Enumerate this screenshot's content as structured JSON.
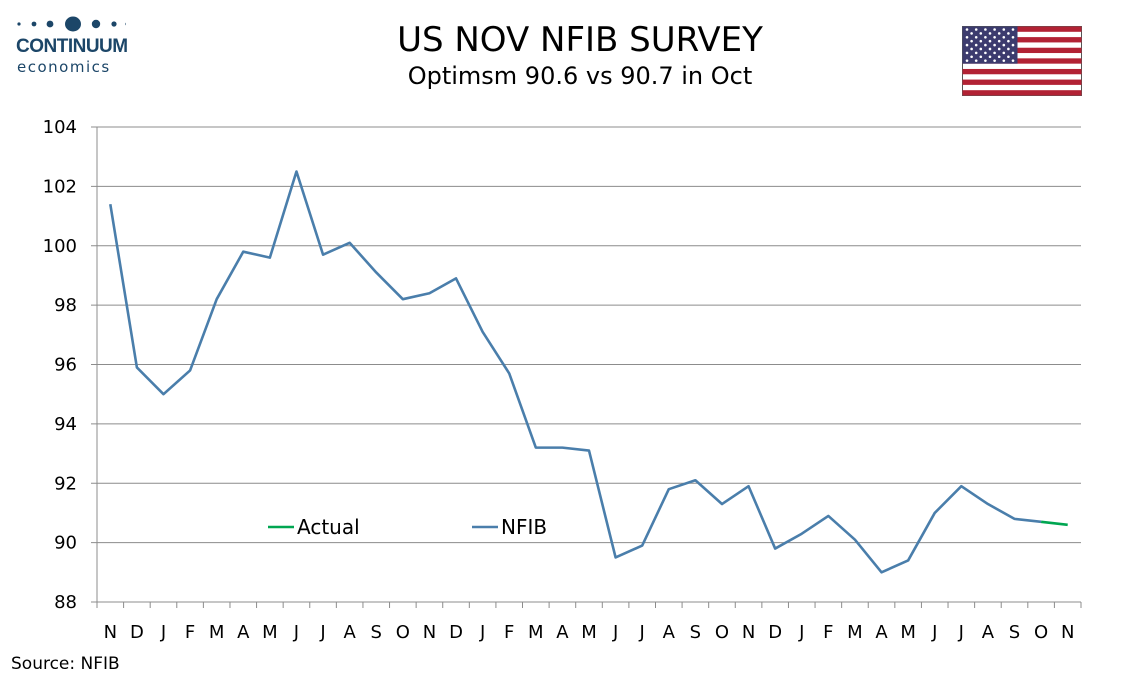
{
  "logo": {
    "name": "CONTINUUM",
    "sub": "economics",
    "color": "#1c4668"
  },
  "header": {
    "title": "US NOV NFIB SURVEY",
    "subtitle": "Optimsm 90.6 vs 90.7 in Oct"
  },
  "footer": {
    "source": "Source: NFIB"
  },
  "chart_data": {
    "type": "line",
    "title": "US NOV NFIB SURVEY",
    "subtitle": "Optimsm 90.6 vs 90.7 in Oct",
    "xlabel": "",
    "ylabel": "",
    "ylim": [
      88,
      104
    ],
    "yticks": [
      88,
      90,
      92,
      94,
      96,
      98,
      100,
      102,
      104
    ],
    "grid": "horizontal",
    "legend_position": "bottom-left inside plot",
    "x": [
      "N",
      "D",
      "J",
      "F",
      "M",
      "A",
      "M",
      "J",
      "J",
      "A",
      "S",
      "O",
      "N",
      "D",
      "J",
      "F",
      "M",
      "A",
      "M",
      "J",
      "J",
      "A",
      "S",
      "O",
      "N",
      "D",
      "J",
      "F",
      "M",
      "A",
      "M",
      "J",
      "J",
      "A",
      "S",
      "O",
      "N"
    ],
    "series": [
      {
        "name": "NFIB",
        "color": "#4a7eab",
        "values": [
          101.4,
          95.9,
          95.0,
          95.8,
          98.2,
          99.8,
          99.6,
          102.5,
          99.7,
          100.1,
          99.1,
          98.2,
          98.4,
          98.9,
          97.1,
          95.7,
          93.2,
          93.2,
          93.1,
          89.5,
          89.9,
          91.8,
          92.1,
          91.3,
          91.9,
          89.8,
          90.3,
          90.9,
          90.1,
          89.0,
          89.4,
          91.0,
          91.9,
          91.3,
          90.8,
          90.7,
          null
        ]
      },
      {
        "name": "Actual",
        "color": "#00a651",
        "values": [
          null,
          null,
          null,
          null,
          null,
          null,
          null,
          null,
          null,
          null,
          null,
          null,
          null,
          null,
          null,
          null,
          null,
          null,
          null,
          null,
          null,
          null,
          null,
          null,
          null,
          null,
          null,
          null,
          null,
          null,
          null,
          null,
          null,
          null,
          null,
          90.7,
          90.6
        ]
      }
    ]
  }
}
